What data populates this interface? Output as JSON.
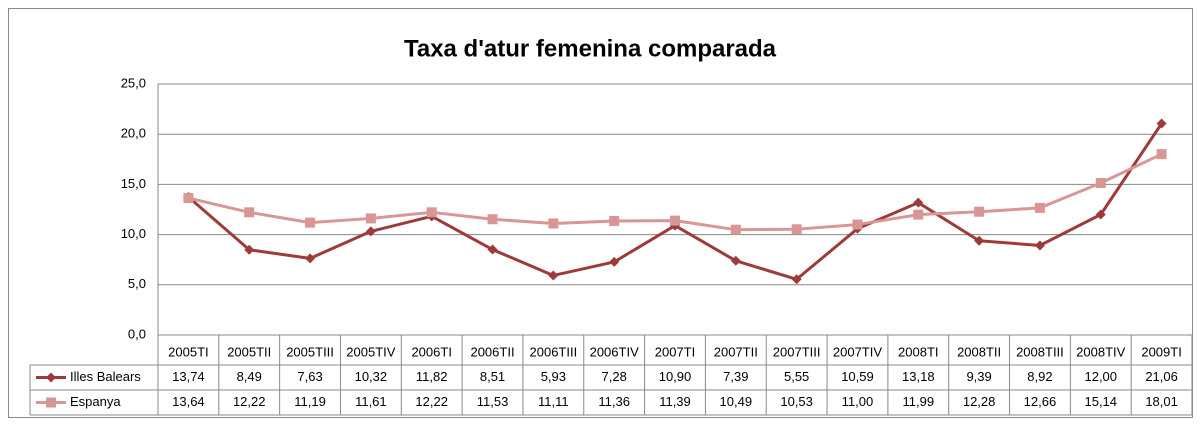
{
  "chart_data": {
    "type": "line",
    "title": "Taxa d'atur femenina comparada",
    "categories": [
      "2005TI",
      "2005TII",
      "2005TIII",
      "2005TIV",
      "2006TI",
      "2006TII",
      "2006TIII",
      "2006TIV",
      "2007TI",
      "2007TII",
      "2007TIII",
      "2007TIV",
      "2008TI",
      "2008TII",
      "2008TIII",
      "2008TIV",
      "2009TI"
    ],
    "series": [
      {
        "name": "Illes Balears",
        "color": "#9e3a3a",
        "marker": "diamond",
        "values": [
          13.74,
          8.49,
          7.63,
          10.32,
          11.82,
          8.51,
          5.93,
          7.28,
          10.9,
          7.39,
          5.55,
          10.59,
          13.18,
          9.39,
          8.92,
          12.0,
          21.06
        ],
        "value_labels": [
          "13,74",
          "8,49",
          "7,63",
          "10,32",
          "11,82",
          "8,51",
          "5,93",
          "7,28",
          "10,90",
          "7,39",
          "5,55",
          "10,59",
          "13,18",
          "9,39",
          "8,92",
          "12,00",
          "21,06"
        ]
      },
      {
        "name": "Espanya",
        "color": "#d89694",
        "marker": "square",
        "values": [
          13.64,
          12.22,
          11.19,
          11.61,
          12.22,
          11.53,
          11.11,
          11.36,
          11.39,
          10.49,
          10.53,
          11.0,
          11.99,
          12.28,
          12.66,
          15.14,
          18.01
        ],
        "value_labels": [
          "13,64",
          "12,22",
          "11,19",
          "11,61",
          "12,22",
          "11,53",
          "11,11",
          "11,36",
          "11,39",
          "10,49",
          "10,53",
          "11,00",
          "11,99",
          "12,28",
          "12,66",
          "15,14",
          "18,01"
        ]
      }
    ],
    "ylim": [
      0,
      25
    ],
    "yticks": [
      {
        "value": 0,
        "label": "0,0"
      },
      {
        "value": 5,
        "label": "5,0"
      },
      {
        "value": 10,
        "label": "10,0"
      },
      {
        "value": 15,
        "label": "15,0"
      },
      {
        "value": 20,
        "label": "20,0"
      },
      {
        "value": 25,
        "label": "25,0"
      }
    ],
    "grid": true,
    "legend": "table"
  }
}
